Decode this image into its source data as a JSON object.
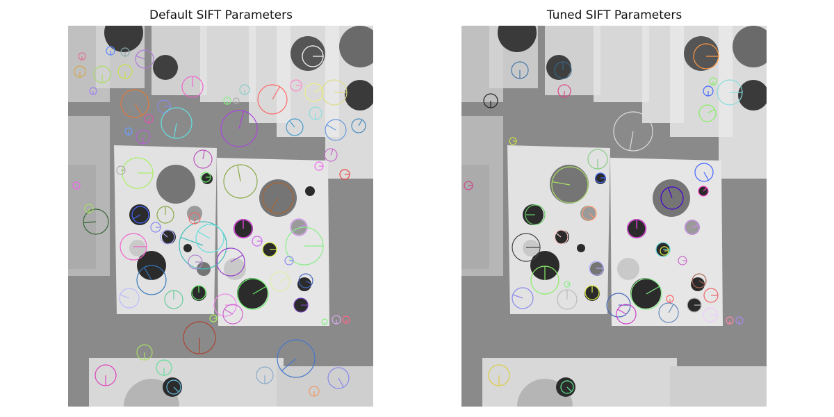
{
  "figure": {
    "panels": [
      {
        "title": "Default SIFT Parameters",
        "variant": "default"
      },
      {
        "title": "Tuned SIFT Parameters",
        "variant": "tuned"
      }
    ]
  },
  "colors": {
    "background_gray": "#8a8a8a",
    "board_white": "#e2e2e2",
    "dot_dark": "#2b2b2b",
    "dot_gray": "#757575"
  }
}
